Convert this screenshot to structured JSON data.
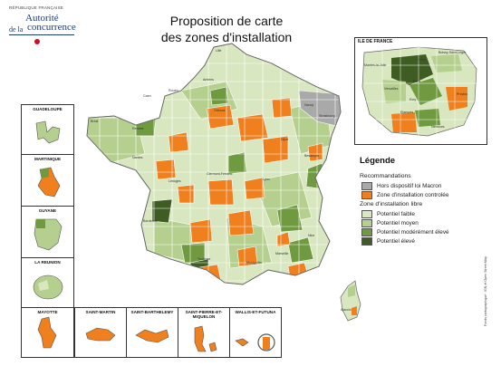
{
  "logo": {
    "republic": "RÉPUBLIQUE FRANÇAISE",
    "line1": "Autorité",
    "line2_prefix": "de la",
    "line2": "concurrence"
  },
  "title": {
    "line1": "Proposition de carte",
    "line2": "des zones d'installation"
  },
  "colors": {
    "faible": "#d8e7bf",
    "moyen": "#b5d08e",
    "modere": "#6f9a3f",
    "eleve": "#3f5d22",
    "controlee": "#f07f1e",
    "macron": "#a9a9a9",
    "border": "#8a8a8a"
  },
  "overseas": [
    {
      "name": "GUADELOUPE",
      "zone": "moyen"
    },
    {
      "name": "MARTINIQUE",
      "zone": "controlee"
    },
    {
      "name": "GUYANE",
      "zone": "moyen"
    },
    {
      "name": "LA REUNION",
      "zone": "moyen"
    },
    {
      "name": "MAYOTTE",
      "zone": "controlee"
    },
    {
      "name": "SAINT-MARTIN",
      "zone": "controlee"
    },
    {
      "name": "SAINT-BARTHELEMY",
      "zone": "controlee"
    },
    {
      "name": "SAINT-PIERRE-ET-MIQUELON",
      "zone": "controlee"
    },
    {
      "name": "WALLIS-ET-FUTUNA",
      "zone": "controlee"
    }
  ],
  "inset": {
    "title": "ILE DE FRANCE",
    "cities": [
      "Mantes-la-Jolie",
      "Paris",
      "Evry",
      "Etampes",
      "Nemours",
      "Provins",
      "Creil",
      "Boissy-Saint-Léger",
      "Versailles"
    ]
  },
  "map_cities": [
    "Lille",
    "Amiens",
    "Caen",
    "Rouen",
    "Brest",
    "Rennes",
    "Nantes",
    "Angers",
    "Tours",
    "Poitiers",
    "Limoges",
    "Clermont-Ferrand",
    "Bordeaux",
    "Toulouse",
    "Montpellier",
    "Marseille",
    "Nice",
    "Lyon",
    "Dijon",
    "Besançon",
    "Nancy",
    "Strasbourg",
    "Reims",
    "Charleville-Mézières",
    "Châlons-en-Champagne",
    "Orléans",
    "Ajaccio",
    "Bastia",
    "Grenoble",
    "Saint-Étienne",
    "Pau",
    "Perpignan",
    "Toulon"
  ],
  "legend": {
    "title": "Légende",
    "recommandations": "Recommandations",
    "items_top": [
      {
        "label": "Hors dispositif loi Macron",
        "color": "#a9a9a9"
      },
      {
        "label": "Zone d'installation controlée",
        "color": "#f07f1e"
      }
    ],
    "zone_libre": "Zone d'installation libre",
    "items_bottom": [
      {
        "label": "Potentiel faible",
        "color": "#d8e7bf"
      },
      {
        "label": "Potentiel moyen",
        "color": "#b5d08e"
      },
      {
        "label": "Potentiel modérément élevé",
        "color": "#6f9a3f"
      },
      {
        "label": "Potentiel élevé",
        "color": "#3f5d22"
      }
    ]
  },
  "source": "Fonds cartographique : IGN et Open Street Map"
}
